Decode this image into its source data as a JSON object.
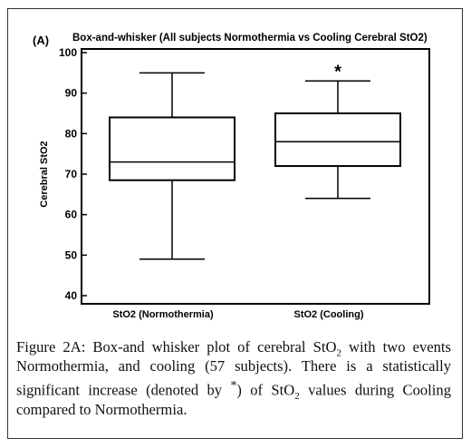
{
  "caption": {
    "label": "Figure 2A:",
    "p1": " Box-and whisker plot of cerebral StO",
    "sub1": "2",
    "p2": " with two events Normothermia, and cooling (57 subjects). There is a statistically significant increase (denoted by ",
    "star": "*",
    "p3": ") of StO",
    "sub2": "2",
    "p4": " values during Cooling compared to Normothermia."
  },
  "chart_data": {
    "type": "box",
    "panel_label": "(A)",
    "title": "Box-and-whisker (All subjects Normothermia vs Cooling Cerebral StO2)",
    "ylabel": "Cerebral StO2",
    "xlabel": "",
    "ylim": [
      40,
      100
    ],
    "yticks": [
      40,
      50,
      60,
      70,
      80,
      90,
      100
    ],
    "categories": [
      "StO2 (Normothermia)",
      "StO2 (Cooling)"
    ],
    "boxes": [
      {
        "category": "StO2 (Normothermia)",
        "min": 49,
        "q1": 68.5,
        "median": 73,
        "q3": 84,
        "max": 95,
        "annotation": ""
      },
      {
        "category": "StO2 (Cooling)",
        "min": 64,
        "q1": 72,
        "median": 78,
        "q3": 85,
        "max": 93,
        "annotation": "*"
      }
    ],
    "grid": false,
    "legend": "none"
  }
}
